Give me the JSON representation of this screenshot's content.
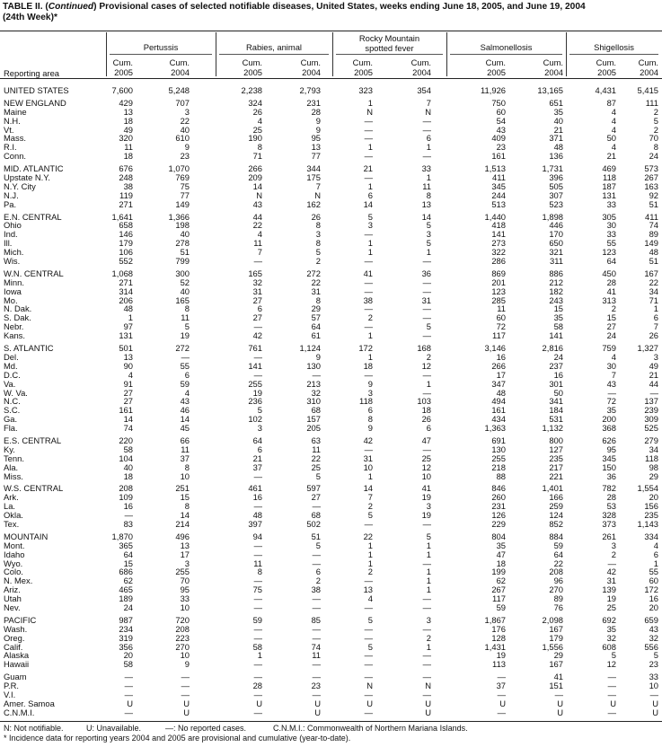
{
  "title": {
    "prefix": "TABLE II. (",
    "continued": "Continued",
    "text": ") Provisional cases of selected notifiable diseases, United States, weeks ending June 18, 2005, and June 19, 2004",
    "line2": "(24th Week)*"
  },
  "header": {
    "reporting_area": "Reporting area",
    "groups": [
      {
        "name": "Pertussis"
      },
      {
        "name": "Rabies, animal"
      },
      {
        "name": "Rocky Mountain",
        "name2": "spotted fever"
      },
      {
        "name": "Salmonellosis"
      },
      {
        "name": "Shigellosis"
      }
    ],
    "cum": "Cum.",
    "years": [
      "2005",
      "2004"
    ]
  },
  "groups": [
    {
      "rows": [
        {
          "area": "UNITED STATES",
          "v": [
            "7,600",
            "5,248",
            "2,238",
            "2,793",
            "323",
            "354",
            "11,926",
            "13,165",
            "4,431",
            "5,415"
          ]
        }
      ]
    },
    {
      "rows": [
        {
          "area": "NEW ENGLAND",
          "v": [
            "429",
            "707",
            "324",
            "231",
            "1",
            "7",
            "750",
            "651",
            "87",
            "111"
          ]
        },
        {
          "area": "Maine",
          "v": [
            "13",
            "3",
            "26",
            "28",
            "N",
            "N",
            "60",
            "35",
            "4",
            "2"
          ]
        },
        {
          "area": "N.H.",
          "v": [
            "18",
            "22",
            "4",
            "9",
            "—",
            "—",
            "54",
            "40",
            "4",
            "5"
          ]
        },
        {
          "area": "Vt.",
          "v": [
            "49",
            "40",
            "25",
            "9",
            "—",
            "—",
            "43",
            "21",
            "4",
            "2"
          ]
        },
        {
          "area": "Mass.",
          "v": [
            "320",
            "610",
            "190",
            "95",
            "—",
            "6",
            "409",
            "371",
            "50",
            "70"
          ]
        },
        {
          "area": "R.I.",
          "v": [
            "11",
            "9",
            "8",
            "13",
            "1",
            "1",
            "23",
            "48",
            "4",
            "8"
          ]
        },
        {
          "area": "Conn.",
          "v": [
            "18",
            "23",
            "71",
            "77",
            "—",
            "—",
            "161",
            "136",
            "21",
            "24"
          ]
        }
      ]
    },
    {
      "rows": [
        {
          "area": "MID. ATLANTIC",
          "v": [
            "676",
            "1,070",
            "266",
            "344",
            "21",
            "33",
            "1,513",
            "1,731",
            "469",
            "573"
          ]
        },
        {
          "area": "Upstate N.Y.",
          "v": [
            "248",
            "769",
            "209",
            "175",
            "—",
            "1",
            "411",
            "396",
            "118",
            "267"
          ]
        },
        {
          "area": "N.Y. City",
          "v": [
            "38",
            "75",
            "14",
            "7",
            "1",
            "11",
            "345",
            "505",
            "187",
            "163"
          ]
        },
        {
          "area": "N.J.",
          "v": [
            "119",
            "77",
            "N",
            "N",
            "6",
            "8",
            "244",
            "307",
            "131",
            "92"
          ]
        },
        {
          "area": "Pa.",
          "v": [
            "271",
            "149",
            "43",
            "162",
            "14",
            "13",
            "513",
            "523",
            "33",
            "51"
          ]
        }
      ]
    },
    {
      "rows": [
        {
          "area": "E.N. CENTRAL",
          "v": [
            "1,641",
            "1,366",
            "44",
            "26",
            "5",
            "14",
            "1,440",
            "1,898",
            "305",
            "411"
          ]
        },
        {
          "area": "Ohio",
          "v": [
            "658",
            "198",
            "22",
            "8",
            "3",
            "5",
            "418",
            "446",
            "30",
            "74"
          ]
        },
        {
          "area": "Ind.",
          "v": [
            "146",
            "40",
            "4",
            "3",
            "—",
            "3",
            "141",
            "170",
            "33",
            "89"
          ]
        },
        {
          "area": "Ill.",
          "v": [
            "179",
            "278",
            "11",
            "8",
            "1",
            "5",
            "273",
            "650",
            "55",
            "149"
          ]
        },
        {
          "area": "Mich.",
          "v": [
            "106",
            "51",
            "7",
            "5",
            "1",
            "1",
            "322",
            "321",
            "123",
            "48"
          ]
        },
        {
          "area": "Wis.",
          "v": [
            "552",
            "799",
            "—",
            "2",
            "—",
            "—",
            "286",
            "311",
            "64",
            "51"
          ]
        }
      ]
    },
    {
      "rows": [
        {
          "area": "W.N. CENTRAL",
          "v": [
            "1,068",
            "300",
            "165",
            "272",
            "41",
            "36",
            "869",
            "886",
            "450",
            "167"
          ]
        },
        {
          "area": "Minn.",
          "v": [
            "271",
            "52",
            "32",
            "22",
            "—",
            "—",
            "201",
            "212",
            "28",
            "22"
          ]
        },
        {
          "area": "Iowa",
          "v": [
            "314",
            "40",
            "31",
            "31",
            "—",
            "—",
            "123",
            "182",
            "41",
            "34"
          ]
        },
        {
          "area": "Mo.",
          "v": [
            "206",
            "165",
            "27",
            "8",
            "38",
            "31",
            "285",
            "243",
            "313",
            "71"
          ]
        },
        {
          "area": "N. Dak.",
          "v": [
            "48",
            "8",
            "6",
            "29",
            "—",
            "—",
            "11",
            "15",
            "2",
            "1"
          ]
        },
        {
          "area": "S. Dak.",
          "v": [
            "1",
            "11",
            "27",
            "57",
            "2",
            "—",
            "60",
            "35",
            "15",
            "6"
          ]
        },
        {
          "area": "Nebr.",
          "v": [
            "97",
            "5",
            "—",
            "64",
            "—",
            "5",
            "72",
            "58",
            "27",
            "7"
          ]
        },
        {
          "area": "Kans.",
          "v": [
            "131",
            "19",
            "42",
            "61",
            "1",
            "—",
            "117",
            "141",
            "24",
            "26"
          ]
        }
      ]
    },
    {
      "rows": [
        {
          "area": "S. ATLANTIC",
          "v": [
            "501",
            "272",
            "761",
            "1,124",
            "172",
            "168",
            "3,146",
            "2,816",
            "759",
            "1,327"
          ]
        },
        {
          "area": "Del.",
          "v": [
            "13",
            "—",
            "—",
            "9",
            "1",
            "2",
            "16",
            "24",
            "4",
            "3"
          ]
        },
        {
          "area": "Md.",
          "v": [
            "90",
            "55",
            "141",
            "130",
            "18",
            "12",
            "266",
            "237",
            "30",
            "49"
          ]
        },
        {
          "area": "D.C.",
          "v": [
            "4",
            "6",
            "—",
            "—",
            "—",
            "—",
            "17",
            "16",
            "7",
            "21"
          ]
        },
        {
          "area": "Va.",
          "v": [
            "91",
            "59",
            "255",
            "213",
            "9",
            "1",
            "347",
            "301",
            "43",
            "44"
          ]
        },
        {
          "area": "W. Va.",
          "v": [
            "27",
            "4",
            "19",
            "32",
            "3",
            "—",
            "48",
            "50",
            "—",
            "—"
          ]
        },
        {
          "area": "N.C.",
          "v": [
            "27",
            "43",
            "236",
            "310",
            "118",
            "103",
            "494",
            "341",
            "72",
            "137"
          ]
        },
        {
          "area": "S.C.",
          "v": [
            "161",
            "46",
            "5",
            "68",
            "6",
            "18",
            "161",
            "184",
            "35",
            "239"
          ]
        },
        {
          "area": "Ga.",
          "v": [
            "14",
            "14",
            "102",
            "157",
            "8",
            "26",
            "434",
            "531",
            "200",
            "309"
          ]
        },
        {
          "area": "Fla.",
          "v": [
            "74",
            "45",
            "3",
            "205",
            "9",
            "6",
            "1,363",
            "1,132",
            "368",
            "525"
          ]
        }
      ]
    },
    {
      "rows": [
        {
          "area": "E.S. CENTRAL",
          "v": [
            "220",
            "66",
            "64",
            "63",
            "42",
            "47",
            "691",
            "800",
            "626",
            "279"
          ]
        },
        {
          "area": "Ky.",
          "v": [
            "58",
            "11",
            "6",
            "11",
            "—",
            "—",
            "130",
            "127",
            "95",
            "34"
          ]
        },
        {
          "area": "Tenn.",
          "v": [
            "104",
            "37",
            "21",
            "22",
            "31",
            "25",
            "255",
            "235",
            "345",
            "118"
          ]
        },
        {
          "area": "Ala.",
          "v": [
            "40",
            "8",
            "37",
            "25",
            "10",
            "12",
            "218",
            "217",
            "150",
            "98"
          ]
        },
        {
          "area": "Miss.",
          "v": [
            "18",
            "10",
            "—",
            "5",
            "1",
            "10",
            "88",
            "221",
            "36",
            "29"
          ]
        }
      ]
    },
    {
      "rows": [
        {
          "area": "W.S. CENTRAL",
          "v": [
            "208",
            "251",
            "461",
            "597",
            "14",
            "41",
            "846",
            "1,401",
            "782",
            "1,554"
          ]
        },
        {
          "area": "Ark.",
          "v": [
            "109",
            "15",
            "16",
            "27",
            "7",
            "19",
            "260",
            "166",
            "28",
            "20"
          ]
        },
        {
          "area": "La.",
          "v": [
            "16",
            "8",
            "—",
            "—",
            "2",
            "3",
            "231",
            "259",
            "53",
            "156"
          ]
        },
        {
          "area": "Okla.",
          "v": [
            "—",
            "14",
            "48",
            "68",
            "5",
            "19",
            "126",
            "124",
            "328",
            "235"
          ]
        },
        {
          "area": "Tex.",
          "v": [
            "83",
            "214",
            "397",
            "502",
            "—",
            "—",
            "229",
            "852",
            "373",
            "1,143"
          ]
        }
      ]
    },
    {
      "rows": [
        {
          "area": "MOUNTAIN",
          "v": [
            "1,870",
            "496",
            "94",
            "51",
            "22",
            "5",
            "804",
            "884",
            "261",
            "334"
          ]
        },
        {
          "area": "Mont.",
          "v": [
            "365",
            "13",
            "—",
            "5",
            "1",
            "1",
            "35",
            "59",
            "3",
            "4"
          ]
        },
        {
          "area": "Idaho",
          "v": [
            "64",
            "17",
            "—",
            "—",
            "1",
            "1",
            "47",
            "64",
            "2",
            "6"
          ]
        },
        {
          "area": "Wyo.",
          "v": [
            "15",
            "3",
            "11",
            "—",
            "1",
            "—",
            "18",
            "22",
            "—",
            "1"
          ]
        },
        {
          "area": "Colo.",
          "v": [
            "686",
            "255",
            "8",
            "6",
            "2",
            "1",
            "199",
            "208",
            "42",
            "55"
          ]
        },
        {
          "area": "N. Mex.",
          "v": [
            "62",
            "70",
            "—",
            "2",
            "—",
            "1",
            "62",
            "96",
            "31",
            "60"
          ]
        },
        {
          "area": "Ariz.",
          "v": [
            "465",
            "95",
            "75",
            "38",
            "13",
            "1",
            "267",
            "270",
            "139",
            "172"
          ]
        },
        {
          "area": "Utah",
          "v": [
            "189",
            "33",
            "—",
            "—",
            "4",
            "—",
            "117",
            "89",
            "19",
            "16"
          ]
        },
        {
          "area": "Nev.",
          "v": [
            "24",
            "10",
            "—",
            "—",
            "—",
            "—",
            "59",
            "76",
            "25",
            "20"
          ]
        }
      ]
    },
    {
      "rows": [
        {
          "area": "PACIFIC",
          "v": [
            "987",
            "720",
            "59",
            "85",
            "5",
            "3",
            "1,867",
            "2,098",
            "692",
            "659"
          ]
        },
        {
          "area": "Wash.",
          "v": [
            "234",
            "208",
            "—",
            "—",
            "—",
            "—",
            "176",
            "167",
            "35",
            "43"
          ]
        },
        {
          "area": "Oreg.",
          "v": [
            "319",
            "223",
            "—",
            "—",
            "—",
            "2",
            "128",
            "179",
            "32",
            "32"
          ]
        },
        {
          "area": "Calif.",
          "v": [
            "356",
            "270",
            "58",
            "74",
            "5",
            "1",
            "1,431",
            "1,556",
            "608",
            "556"
          ]
        },
        {
          "area": "Alaska",
          "v": [
            "20",
            "10",
            "1",
            "11",
            "—",
            "—",
            "19",
            "29",
            "5",
            "5"
          ]
        },
        {
          "area": "Hawaii",
          "v": [
            "58",
            "9",
            "—",
            "—",
            "—",
            "—",
            "113",
            "167",
            "12",
            "23"
          ]
        }
      ]
    },
    {
      "rows": [
        {
          "area": "Guam",
          "v": [
            "—",
            "—",
            "—",
            "—",
            "—",
            "—",
            "—",
            "41",
            "—",
            "33"
          ]
        },
        {
          "area": "P.R.",
          "v": [
            "—",
            "—",
            "28",
            "23",
            "N",
            "N",
            "37",
            "151",
            "—",
            "10"
          ]
        },
        {
          "area": "V.I.",
          "v": [
            "—",
            "—",
            "—",
            "—",
            "—",
            "—",
            "—",
            "—",
            "—",
            "—"
          ]
        },
        {
          "area": "Amer. Samoa",
          "v": [
            "U",
            "U",
            "U",
            "U",
            "U",
            "U",
            "U",
            "U",
            "U",
            "U"
          ]
        },
        {
          "area": "C.N.M.I.",
          "v": [
            "—",
            "U",
            "—",
            "U",
            "—",
            "U",
            "—",
            "U",
            "—",
            "U"
          ]
        }
      ]
    }
  ],
  "footnotes": {
    "legend": [
      "N: Not notifiable.",
      "U: Unavailable.",
      "—: No reported cases.",
      "C.N.M.I.: Commonwealth of Northern Mariana Islands."
    ],
    "note": "* Incidence data for reporting years 2004 and 2005 are provisional and cumulative (year-to-date)."
  }
}
